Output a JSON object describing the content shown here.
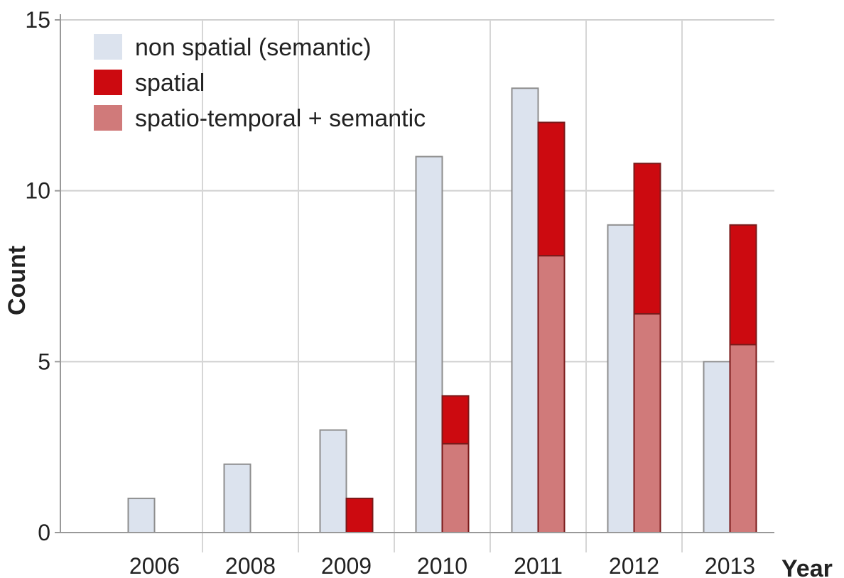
{
  "chart_data": {
    "type": "bar",
    "categories": [
      "2006",
      "2008",
      "2009",
      "2010",
      "2011",
      "2012",
      "2013"
    ],
    "series": [
      {
        "name": "non spatial (semantic)",
        "values": [
          1,
          2,
          3,
          11,
          13,
          9,
          5
        ],
        "color": "#dce3ee",
        "stack": "a"
      },
      {
        "name": "spatio-temporal + semantic",
        "values": [
          0,
          0,
          0,
          2.6,
          8.1,
          6.4,
          5.5
        ],
        "color": "#d07a7a",
        "stack": "b"
      },
      {
        "name": "spatial",
        "values": [
          0,
          0,
          1,
          1.4,
          3.9,
          4.4,
          3.5
        ],
        "color": "#cc0a10",
        "stack": "b"
      }
    ],
    "legend_order": [
      "non spatial (semantic)",
      "spatial",
      "spatio-temporal + semantic"
    ],
    "legend_position": "top-left",
    "title": "",
    "xlabel": "Year",
    "ylabel": "Count",
    "ylim": [
      0,
      15
    ],
    "yticks": [
      0,
      5,
      10,
      15
    ],
    "grid": true
  }
}
